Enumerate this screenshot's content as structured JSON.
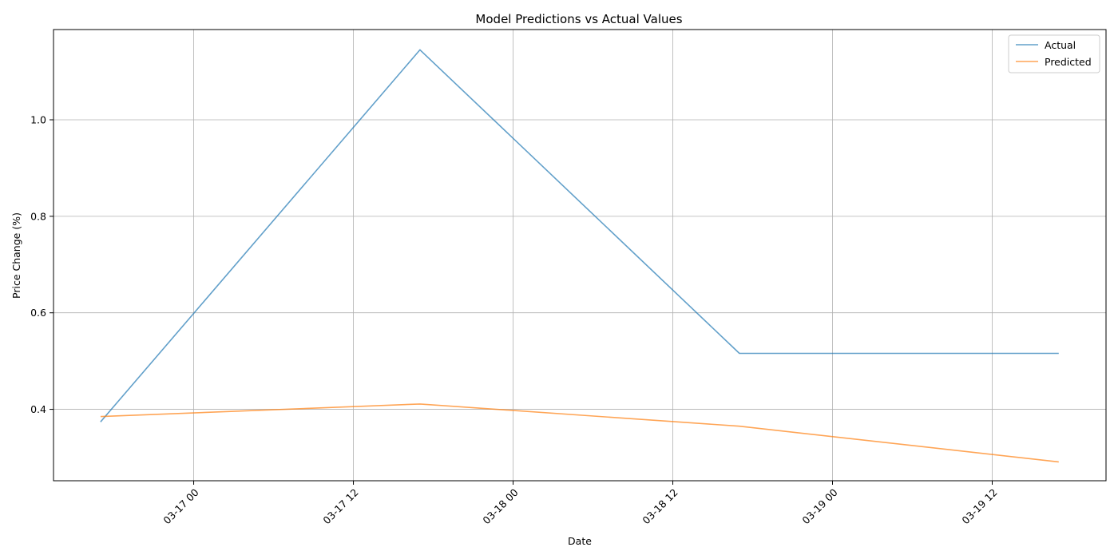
{
  "chart_data": {
    "type": "line",
    "title": "Model Predictions vs Actual Values",
    "xlabel": "Date",
    "ylabel": "Price Change (%)",
    "x": [
      "2025-03-16 17:00",
      "2025-03-17 17:00",
      "2025-03-18 17:00",
      "2025-03-19 17:00"
    ],
    "x_ticks": [
      "2025-03-17 00:00",
      "2025-03-17 12:00",
      "2025-03-18 00:00",
      "2025-03-18 12:00",
      "2025-03-19 00:00",
      "2025-03-19 12:00"
    ],
    "x_tick_labels": [
      "03-17 00",
      "03-17 12",
      "03-18 00",
      "03-18 12",
      "03-19 00",
      "03-19 12"
    ],
    "xlim": [
      "2025-03-16 13:28",
      "2025-03-19 20:33"
    ],
    "y_ticks": [
      0.4,
      0.6,
      0.8,
      1.0
    ],
    "y_tick_labels": [
      "0.4",
      "0.6",
      "0.8",
      "1.0"
    ],
    "ylim": [
      0.252,
      1.187
    ],
    "grid": true,
    "legend_position": "top-right",
    "series": [
      {
        "name": "Actual",
        "color": "#1f77b4",
        "values": [
          0.374,
          1.145,
          0.516,
          0.516
        ]
      },
      {
        "name": "Predicted",
        "color": "#ff7f0e",
        "values": [
          0.385,
          0.411,
          0.365,
          0.291
        ]
      }
    ]
  }
}
